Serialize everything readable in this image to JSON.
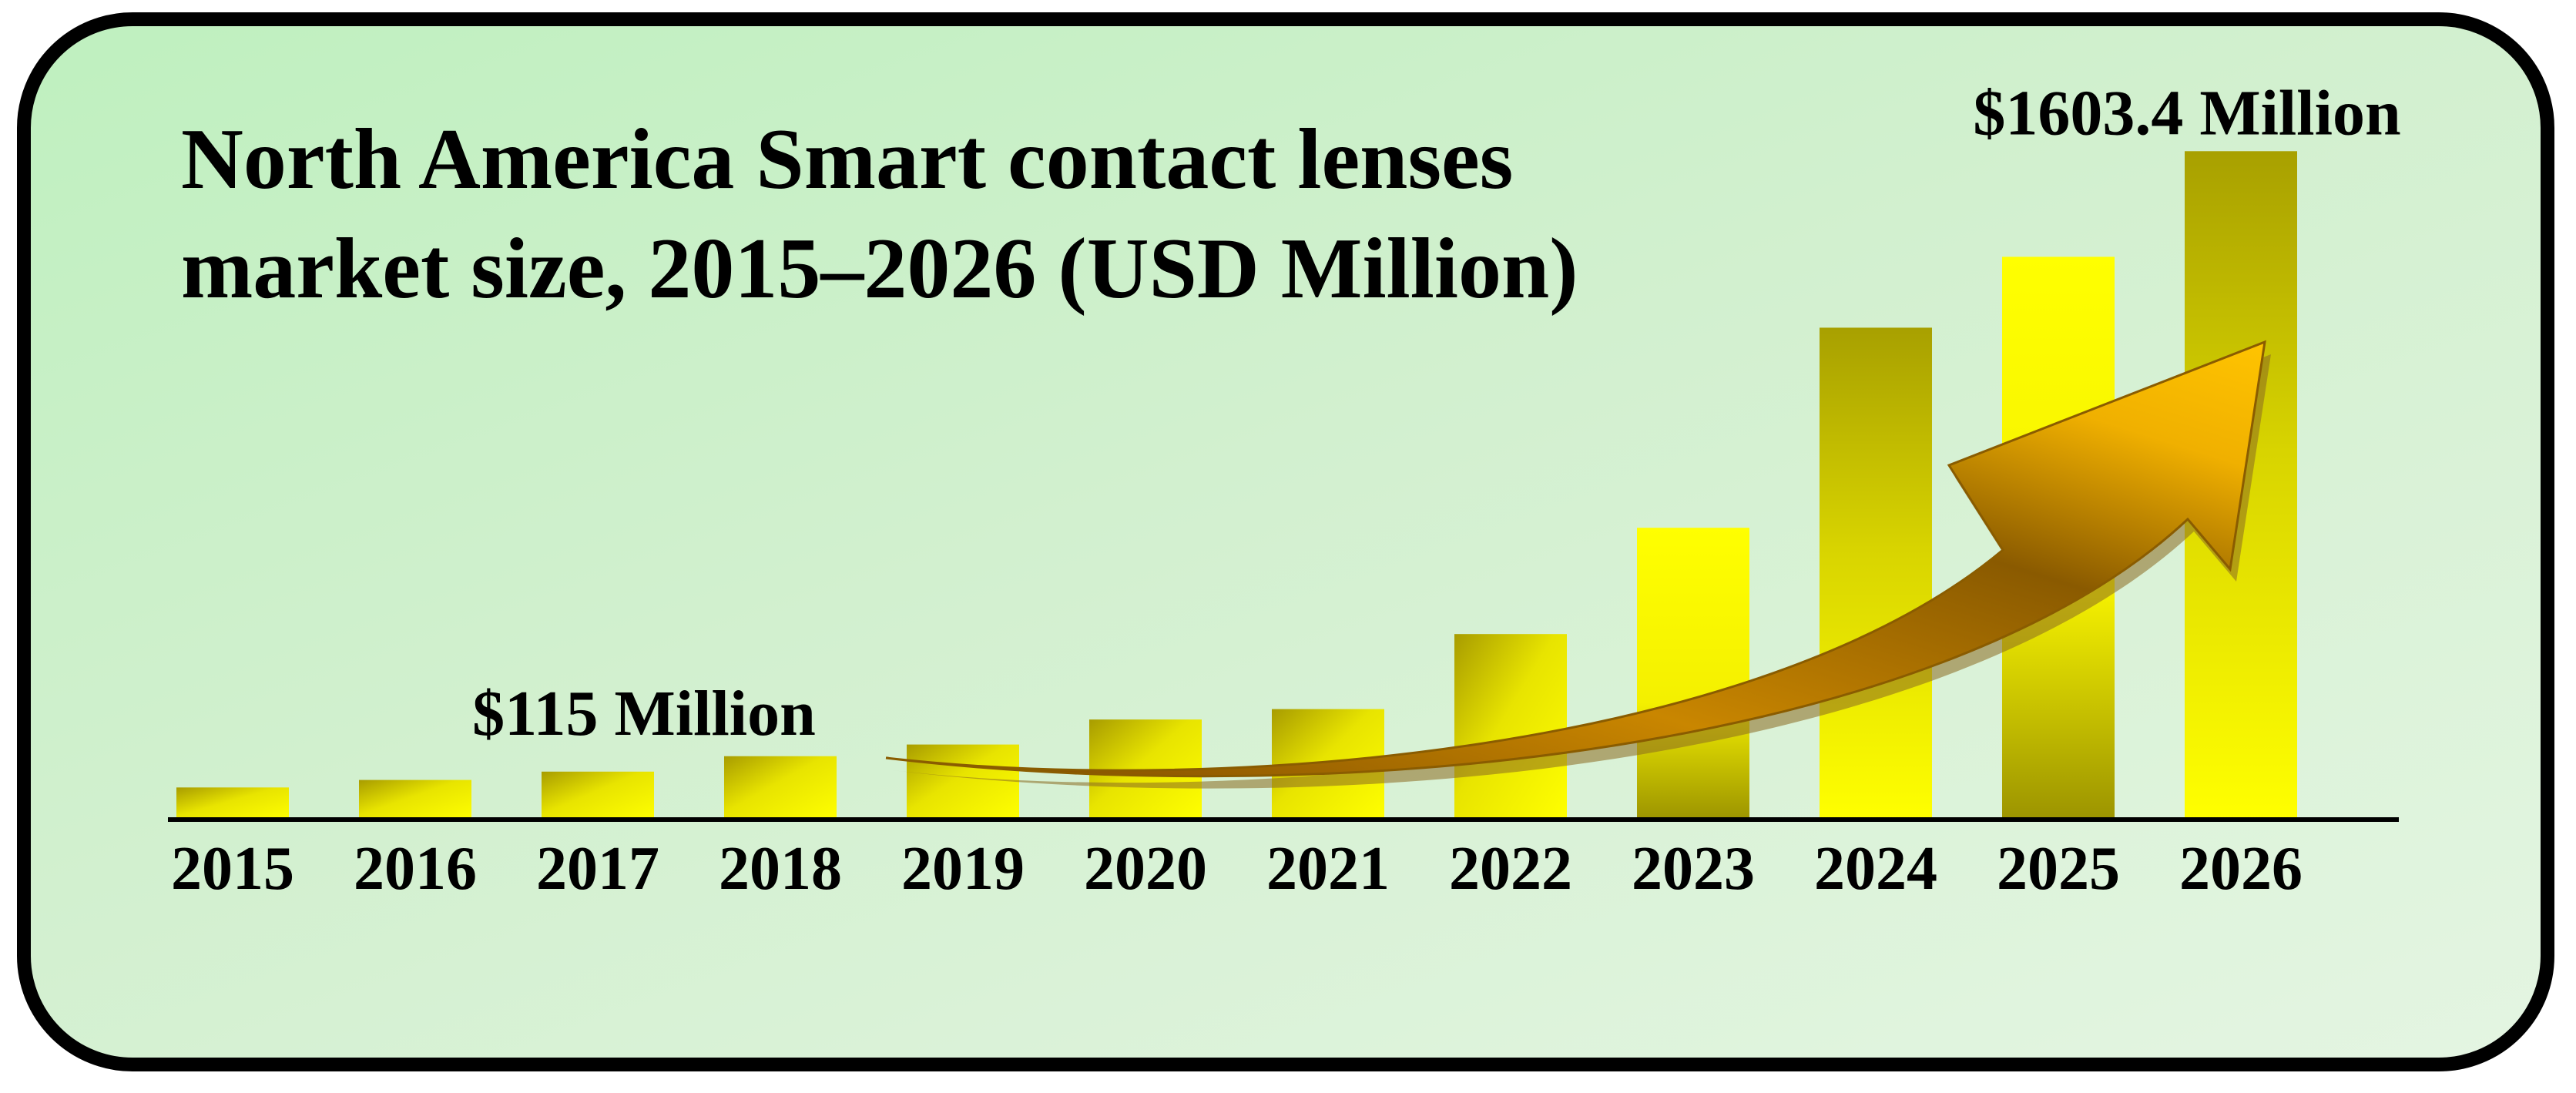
{
  "colors": {
    "panel_border": "#000000",
    "background_light": "#dff4dc",
    "bar_bright": "#ffff00",
    "bar_olive": "#a8a000",
    "arrow_gold": "#e6a800"
  },
  "chart_data": {
    "type": "bar",
    "title_lines": [
      "North America Smart contact lenses",
      "market size, 2015–2026 (USD Million)"
    ],
    "xlabel": "",
    "ylabel": "",
    "categories": [
      "2015",
      "2016",
      "2017",
      "2018",
      "2019",
      "2020",
      "2021",
      "2022",
      "2023",
      "2024",
      "2025",
      "2026"
    ],
    "values": [
      77,
      95,
      115,
      152,
      180,
      240,
      265,
      445,
      700,
      1180,
      1350,
      1603.4
    ],
    "ylim": [
      0,
      1700
    ],
    "grid": false,
    "legend": "none",
    "annotations": [
      {
        "text": "$115 Million",
        "category": "2017"
      },
      {
        "text": "$1603.4 Million",
        "category": "2026"
      }
    ]
  }
}
